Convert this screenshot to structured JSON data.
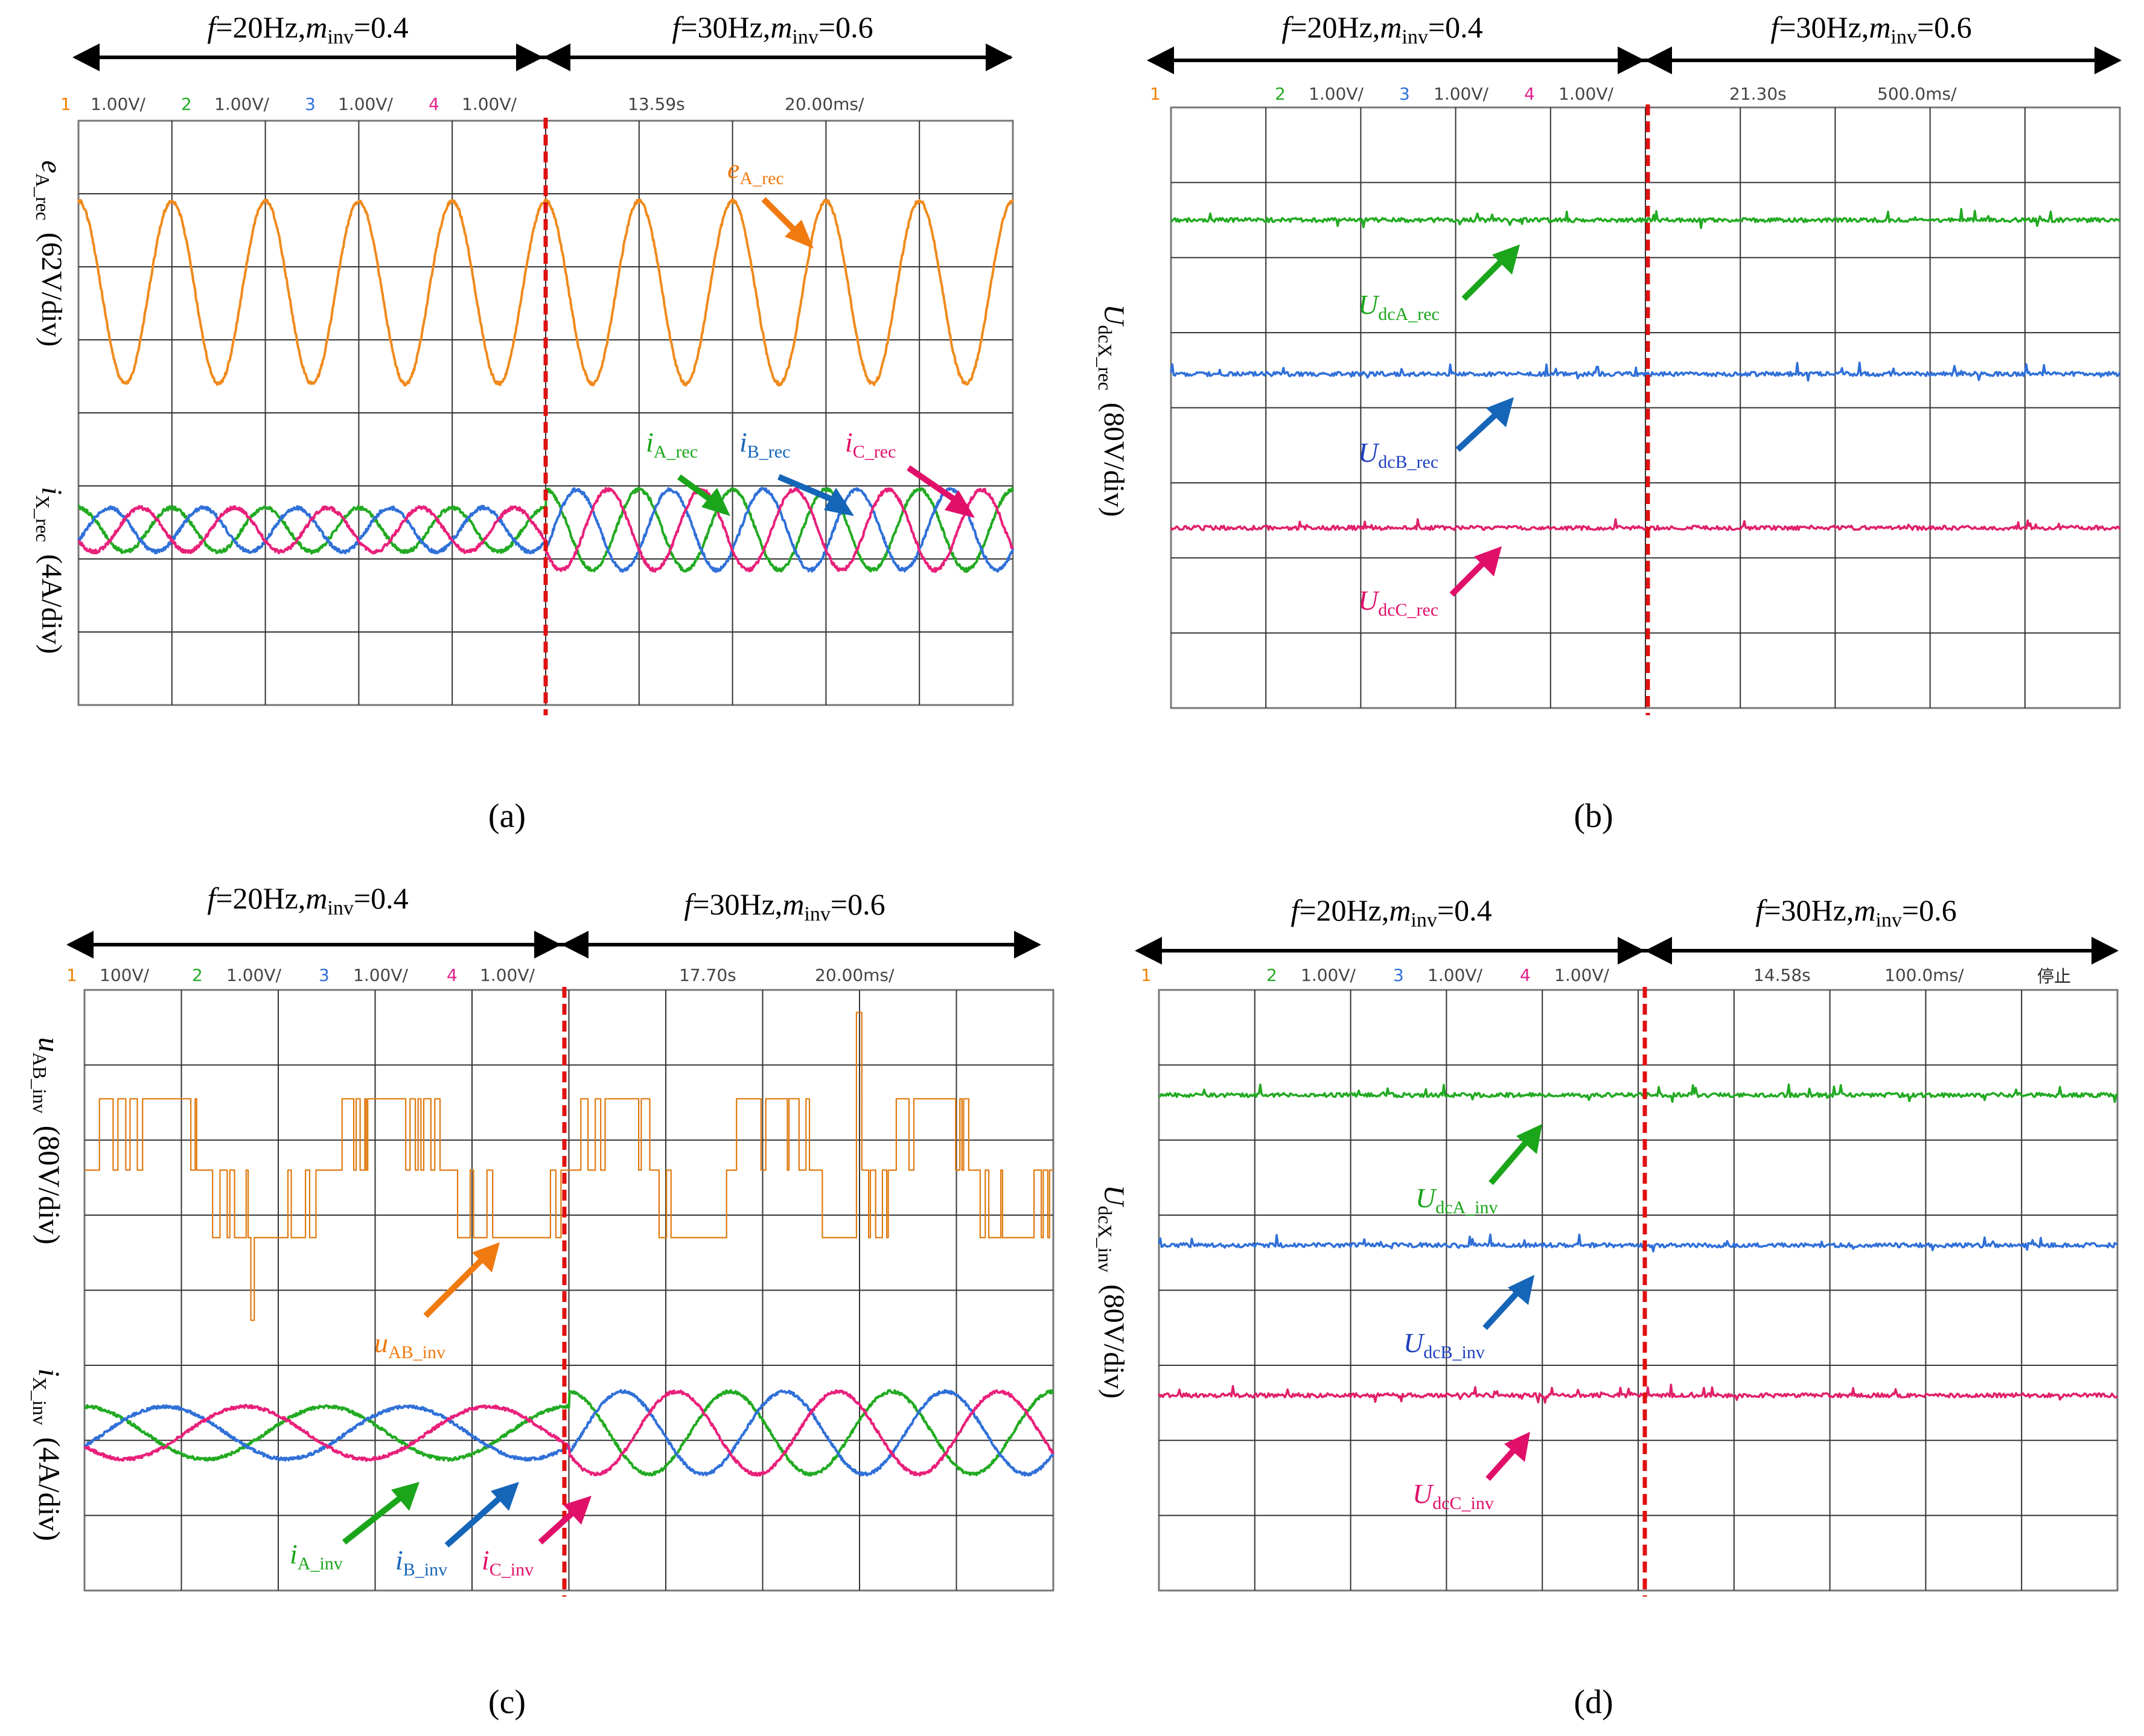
{
  "figure": {
    "panel_tags": [
      "(a)",
      "(b)",
      "(c)",
      "(d)"
    ]
  },
  "chart_data": [
    {
      "id": "a",
      "type": "line",
      "tag": "(a)",
      "arrow_left": {
        "f": "f",
        "eq1": "=20Hz,",
        "m": "m",
        "sub": "inv",
        "eq2": "=0.4"
      },
      "arrow_right": {
        "f": "f",
        "eq1": "=30Hz,",
        "m": "m",
        "sub": "inv",
        "eq2": "=0.6"
      },
      "scope_header": [
        {
          "text": "1",
          "color": "#f08000"
        },
        {
          "text": "1.00V/",
          "color": "#444444"
        },
        {
          "text": "2",
          "color": "#22aa22"
        },
        {
          "text": "1.00V/",
          "color": "#444444"
        },
        {
          "text": "3",
          "color": "#3070d8"
        },
        {
          "text": "1.00V/",
          "color": "#444444"
        },
        {
          "text": "4",
          "color": "#e0208a"
        },
        {
          "text": "1.00V/",
          "color": "#444444"
        }
      ],
      "scope_time": {
        "acq": "13.59s",
        "timebase": "20.00ms/"
      },
      "ylabels": [
        {
          "main": "e",
          "sub": "A_rec",
          "unit": "(62V/div)"
        },
        {
          "main": "i",
          "sub": "X_rec",
          "unit": "(4A/div)"
        }
      ],
      "annotations": [
        {
          "main": "e",
          "sub": "A_rec",
          "color": "#f07a10"
        },
        {
          "main": "i",
          "sub": "A_rec",
          "color": "#1aa51a"
        },
        {
          "main": "i",
          "sub": "B_rec",
          "color": "#1565b8"
        },
        {
          "main": "i",
          "sub": "C_rec",
          "color": "#e0106a"
        }
      ],
      "grid": {
        "x_divisions": 10,
        "y_divisions": 8
      },
      "switch_division": 5,
      "series": [
        {
          "name": "e_A_rec",
          "color": "#f08a1c",
          "amplitude_div": 1.25,
          "offset_div": 2.35,
          "cycles_before": 5,
          "cycles_after": 5
        },
        {
          "name": "i_A_rec",
          "color": "#22aa22",
          "amp_before_div": 0.3,
          "amp_after_div": 0.55,
          "offset_div": 5.6,
          "cycles_before": 5,
          "cycles_after": 5,
          "phase_deg": 0
        },
        {
          "name": "i_B_rec",
          "color": "#3070d8",
          "amp_before_div": 0.3,
          "amp_after_div": 0.55,
          "offset_div": 5.6,
          "cycles_before": 5,
          "cycles_after": 5,
          "phase_deg": -120
        },
        {
          "name": "i_C_rec",
          "color": "#e8207a",
          "amp_before_div": 0.3,
          "amp_after_div": 0.55,
          "offset_div": 5.6,
          "cycles_before": 5,
          "cycles_after": 5,
          "phase_deg": 120
        }
      ]
    },
    {
      "id": "b",
      "type": "line",
      "tag": "(b)",
      "arrow_left": {
        "f": "f",
        "eq1": "=20Hz,",
        "m": "m",
        "sub": "inv",
        "eq2": "=0.4"
      },
      "arrow_right": {
        "f": "f",
        "eq1": "=30Hz,",
        "m": "m",
        "sub": "inv",
        "eq2": "=0.6"
      },
      "scope_header": [
        {
          "text": "1",
          "color": "#f08000"
        },
        {
          "text": "2",
          "color": "#22aa22"
        },
        {
          "text": "1.00V/",
          "color": "#444444"
        },
        {
          "text": "3",
          "color": "#3070d8"
        },
        {
          "text": "1.00V/",
          "color": "#444444"
        },
        {
          "text": "4",
          "color": "#e0208a"
        },
        {
          "text": "1.00V/",
          "color": "#444444"
        }
      ],
      "scope_time": {
        "acq": "21.30s",
        "timebase": "500.0ms/"
      },
      "ylabels": [
        {
          "main": "U",
          "sub": "dcX_rec",
          "unit": "(80V/div)"
        }
      ],
      "annotations": [
        {
          "main": "U",
          "sub": "dcA_rec",
          "color": "#1aa51a"
        },
        {
          "main": "U",
          "sub": "dcB_rec",
          "color": "#1e3fc0"
        },
        {
          "main": "U",
          "sub": "dcC_rec",
          "color": "#e0106a"
        }
      ],
      "grid": {
        "x_divisions": 10,
        "y_divisions": 8
      },
      "switch_division": 5,
      "series": [
        {
          "name": "U_dcA_rec",
          "color": "#22aa22",
          "level_div": 1.5
        },
        {
          "name": "U_dcB_rec",
          "color": "#3070d8",
          "level_div": 3.55
        },
        {
          "name": "U_dcC_rec",
          "color": "#e0206a",
          "level_div": 5.6
        }
      ]
    },
    {
      "id": "c",
      "type": "line",
      "tag": "(c)",
      "arrow_left": {
        "f": "f",
        "eq1": "=20Hz,",
        "m": "m",
        "sub": "inv",
        "eq2": "=0.4"
      },
      "arrow_right": {
        "f": "f",
        "eq1": "=30Hz,",
        "m": "m",
        "sub": "inv",
        "eq2": "=0.6"
      },
      "scope_header": [
        {
          "text": "1",
          "color": "#f08000"
        },
        {
          "text": "100V/",
          "color": "#444444"
        },
        {
          "text": "2",
          "color": "#22aa22"
        },
        {
          "text": "1.00V/",
          "color": "#444444"
        },
        {
          "text": "3",
          "color": "#3070d8"
        },
        {
          "text": "1.00V/",
          "color": "#444444"
        },
        {
          "text": "4",
          "color": "#e0208a"
        },
        {
          "text": "1.00V/",
          "color": "#444444"
        }
      ],
      "scope_time": {
        "acq": "17.70s",
        "timebase": "20.00ms/"
      },
      "ylabels": [
        {
          "main": "u",
          "sub": "AB_inv",
          "unit": "(80V/div)"
        },
        {
          "main": "i",
          "sub": "X_inv",
          "unit": "(4A/div)"
        }
      ],
      "annotations": [
        {
          "main": "u",
          "sub": "AB_inv",
          "color": "#f07a10"
        },
        {
          "main": "i",
          "sub": "A_inv",
          "color": "#1aa51a"
        },
        {
          "main": "i",
          "sub": "B_inv",
          "color": "#1565b8"
        },
        {
          "main": "i",
          "sub": "C_inv",
          "color": "#e0106a"
        }
      ],
      "grid": {
        "x_divisions": 10,
        "y_divisions": 8
      },
      "switch_division": 5,
      "series": [
        {
          "name": "u_AB_inv",
          "color": "#e07a10",
          "levels_div": [
            1.45,
            2.4,
            3.3
          ],
          "cycles_before": 2,
          "cycles_after": 3
        },
        {
          "name": "i_A_inv",
          "color": "#22aa22",
          "amp_before_div": 0.35,
          "amp_after_div": 0.55,
          "offset_div": 5.9,
          "cycles_before": 2,
          "cycles_after": 3,
          "phase_deg": 0
        },
        {
          "name": "i_B_inv",
          "color": "#3070d8",
          "amp_before_div": 0.35,
          "amp_after_div": 0.55,
          "offset_div": 5.9,
          "cycles_before": 2,
          "cycles_after": 3,
          "phase_deg": -120
        },
        {
          "name": "i_C_inv",
          "color": "#e8207a",
          "amp_before_div": 0.35,
          "amp_after_div": 0.55,
          "offset_div": 5.9,
          "cycles_before": 2,
          "cycles_after": 3,
          "phase_deg": 120
        }
      ]
    },
    {
      "id": "d",
      "type": "line",
      "tag": "(d)",
      "arrow_left": {
        "f": "f",
        "eq1": "=20Hz,",
        "m": "m",
        "sub": "inv",
        "eq2": "=0.4"
      },
      "arrow_right": {
        "f": "f",
        "eq1": "=30Hz,",
        "m": "m",
        "sub": "inv",
        "eq2": "=0.6"
      },
      "scope_header": [
        {
          "text": "1",
          "color": "#f08000"
        },
        {
          "text": "2",
          "color": "#22aa22"
        },
        {
          "text": "1.00V/",
          "color": "#444444"
        },
        {
          "text": "3",
          "color": "#3070d8"
        },
        {
          "text": "1.00V/",
          "color": "#444444"
        },
        {
          "text": "4",
          "color": "#e0208a"
        },
        {
          "text": "1.00V/",
          "color": "#444444"
        }
      ],
      "scope_time": {
        "acq": "14.58s",
        "timebase": "100.0ms/",
        "status": "停止"
      },
      "ylabels": [
        {
          "main": "U",
          "sub": "dcX_inv",
          "unit": "(80V/div)"
        }
      ],
      "annotations": [
        {
          "main": "U",
          "sub": "dcA_inv",
          "color": "#1aa51a"
        },
        {
          "main": "U",
          "sub": "dcB_inv",
          "color": "#1e3fc0"
        },
        {
          "main": "U",
          "sub": "dcC_inv",
          "color": "#e0106a"
        }
      ],
      "grid": {
        "x_divisions": 10,
        "y_divisions": 8
      },
      "switch_division": 5,
      "series": [
        {
          "name": "U_dcA_inv",
          "color": "#22aa22",
          "level_div": 1.4
        },
        {
          "name": "U_dcB_inv",
          "color": "#3070d8",
          "level_div": 3.4
        },
        {
          "name": "U_dcC_inv",
          "color": "#e0206a",
          "level_div": 5.4
        }
      ]
    }
  ]
}
